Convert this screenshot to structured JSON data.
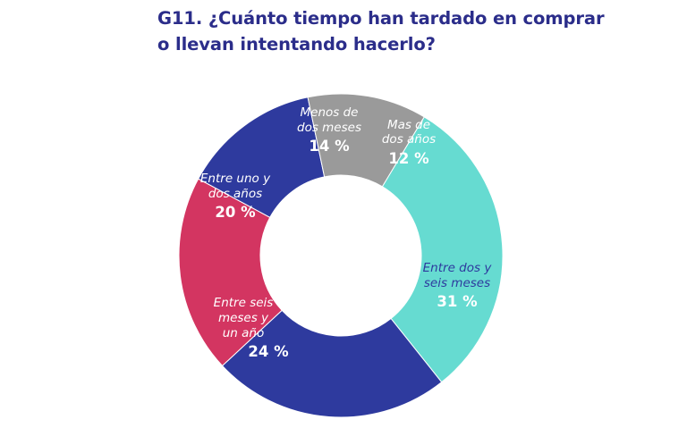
{
  "chart_data": {
    "type": "pie",
    "title_line1": "G11. ¿Cuánto tiempo han tardado en comprar",
    "title_line2": "o llevan intentando hacerlo?",
    "slices": [
      {
        "label_lines": [
          "Entre dos y",
          "seis meses"
        ],
        "value": 31,
        "value_text": "31 %",
        "color": "#66dbd1",
        "text_color": "#2e3a9e",
        "value_color": "#ffffff"
      },
      {
        "label_lines": [
          "Entre seis",
          "meses y",
          "un año"
        ],
        "value": 24,
        "value_text": "24 %",
        "color": "#2e3a9e",
        "text_color": "#ffffff",
        "value_color": "#ffffff"
      },
      {
        "label_lines": [
          "Entre uno y",
          "dos años"
        ],
        "value": 20,
        "value_text": "20 %",
        "color": "#d33561",
        "text_color": "#ffffff",
        "value_color": "#ffffff"
      },
      {
        "label_lines": [
          "Menos de",
          "dos meses"
        ],
        "value": 14,
        "value_text": "14 %",
        "color": "#2e3a9e",
        "text_color": "#ffffff",
        "value_color": "#ffffff"
      },
      {
        "label_lines": [
          "Mas de",
          "dos años"
        ],
        "value": 12,
        "value_text": "12 %",
        "color": "#9a9a9a",
        "text_color": "#ffffff",
        "value_color": "#ffffff"
      }
    ]
  }
}
